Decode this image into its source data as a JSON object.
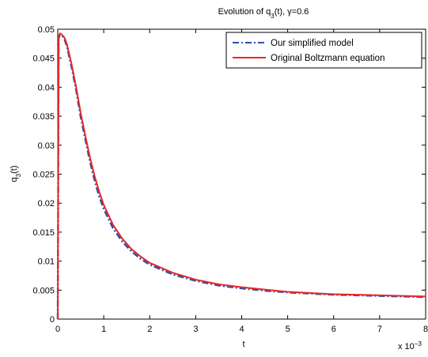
{
  "chart_data": {
    "type": "line",
    "title": "Evolution of q",
    "title_sub": "3",
    "title_suffix": "(t), γ=0.6",
    "xlabel": "t",
    "ylabel_main": "q",
    "ylabel_sub": "3",
    "ylabel_suffix": "(t)",
    "x_exponent_label": "x 10",
    "x_exponent_power": "−3",
    "xlim": [
      0,
      8
    ],
    "ylim": [
      0,
      0.05
    ],
    "x_ticks": [
      0,
      1,
      2,
      3,
      4,
      5,
      6,
      7,
      8
    ],
    "x_tick_labels": [
      "0",
      "1",
      "2",
      "3",
      "4",
      "5",
      "6",
      "7",
      "8"
    ],
    "y_ticks": [
      0,
      0.005,
      0.01,
      0.015,
      0.02,
      0.025,
      0.03,
      0.035,
      0.04,
      0.045,
      0.05
    ],
    "y_tick_labels": [
      "0",
      "0.005",
      "0.01",
      "0.015",
      "0.02",
      "0.025",
      "0.03",
      "0.035",
      "0.04",
      "0.045",
      "0.05"
    ],
    "grid": false,
    "legend_position": "top-right",
    "series": [
      {
        "name": "Our simplified model",
        "color": "#2b4ea3",
        "style": "dash-dot",
        "x": [
          0,
          0.02,
          0.05,
          0.1,
          0.15,
          0.2,
          0.3,
          0.4,
          0.5,
          0.6,
          0.7,
          0.8,
          0.9,
          1.0,
          1.2,
          1.4,
          1.6,
          1.8,
          2.0,
          2.5,
          3.0,
          3.5,
          4.0,
          4.5,
          5.0,
          5.5,
          6.0,
          6.5,
          7.0,
          7.5,
          8.0
        ],
        "y": [
          0,
          0.0485,
          0.049,
          0.0488,
          0.0482,
          0.047,
          0.0435,
          0.0395,
          0.0348,
          0.031,
          0.0272,
          0.024,
          0.0212,
          0.019,
          0.0157,
          0.0134,
          0.0117,
          0.0104,
          0.0094,
          0.0077,
          0.0066,
          0.0058,
          0.0053,
          0.0049,
          0.0046,
          0.0044,
          0.0042,
          0.0041,
          0.004,
          0.0039,
          0.0038
        ]
      },
      {
        "name": "Original Boltzmann equation",
        "color": "#e8262a",
        "style": "solid",
        "x": [
          0,
          0.02,
          0.05,
          0.1,
          0.15,
          0.2,
          0.3,
          0.4,
          0.5,
          0.6,
          0.7,
          0.8,
          0.9,
          1.0,
          1.2,
          1.4,
          1.6,
          1.8,
          2.0,
          2.5,
          3.0,
          3.5,
          4.0,
          4.5,
          5.0,
          5.5,
          6.0,
          6.5,
          7.0,
          7.5,
          8.0
        ],
        "y": [
          0,
          0.0488,
          0.0493,
          0.049,
          0.0485,
          0.0474,
          0.044,
          0.04,
          0.0355,
          0.0316,
          0.0279,
          0.0247,
          0.022,
          0.0197,
          0.0163,
          0.0139,
          0.0121,
          0.0108,
          0.0097,
          0.008,
          0.0068,
          0.006,
          0.0055,
          0.0051,
          0.0047,
          0.0045,
          0.0043,
          0.0042,
          0.0041,
          0.004,
          0.0039
        ]
      }
    ]
  }
}
